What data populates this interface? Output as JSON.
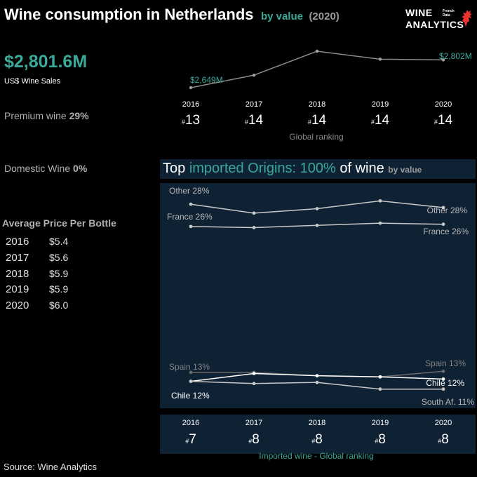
{
  "header": {
    "title": "Wine consumption in Netherlands",
    "by_value": "by value",
    "year": "(2020)"
  },
  "logo": {
    "line1": "WINE",
    "line2": "ANALYTICS",
    "tag1": "French",
    "tag2": "Data"
  },
  "sales": {
    "value": "$2,801.6M",
    "label": "US$ Wine Sales"
  },
  "premium": {
    "label": "Premium wine",
    "value": "29%"
  },
  "domestic": {
    "label": "Domestic Wine",
    "value": "0%"
  },
  "avg_price": {
    "title": "Average Price Per Bottle",
    "rows": [
      {
        "year": "2016",
        "price": "$5.4"
      },
      {
        "year": "2017",
        "price": "$5.6"
      },
      {
        "year": "2018",
        "price": "$5.9"
      },
      {
        "year": "2019",
        "price": "$5.9"
      },
      {
        "year": "2020",
        "price": "$6.0"
      }
    ]
  },
  "origins": {
    "title_pre": "Top",
    "title_teal": "imported Origins: 100%",
    "title_post": "of wine",
    "title_small": "by value"
  },
  "global_ranking_label": "Global ranking",
  "imported_ranking_label": "Imported wine - Global ranking",
  "source": "Source: Wine Analytics",
  "colors": {
    "teal": "#3aa99a",
    "panel": "#0f2233",
    "line": "#9a9a9a"
  },
  "chart_data": [
    {
      "type": "line",
      "x": [
        "2016",
        "2017",
        "2018",
        "2019",
        "2020"
      ],
      "series": [
        {
          "values": [
            2649,
            2718,
            2850,
            2806,
            2802
          ]
        }
      ],
      "labels": {
        "first": "$2,649M",
        "last": "$2,802M"
      },
      "ylim": [
        2600,
        2870
      ]
    },
    {
      "type": "table",
      "title": "Global ranking",
      "x": [
        "2016",
        "2017",
        "2018",
        "2019",
        "2020"
      ],
      "values": [
        13,
        14,
        14,
        14,
        14
      ]
    },
    {
      "type": "line",
      "x": [
        "2016",
        "2017",
        "2018",
        "2019",
        "2020"
      ],
      "ylim": [
        10.5,
        28.7
      ],
      "series": [
        {
          "name": "Other",
          "values": [
            28.0,
            27.2,
            27.6,
            28.3,
            27.7
          ],
          "first_label": "Other 28%",
          "last_label": "Other 28%",
          "color": "#c8c8c8"
        },
        {
          "name": "France",
          "values": [
            26.0,
            25.9,
            26.1,
            26.3,
            26.2
          ],
          "first_label": "France 26%",
          "last_label": "France 26%",
          "color": "#c8c8c8"
        },
        {
          "name": "Spain",
          "values": [
            12.9,
            12.9,
            12.6,
            12.5,
            13.0
          ],
          "first_label": "Spain 13%",
          "last_label": "Spain 13%",
          "color": "#6a6a6a"
        },
        {
          "name": "Chile",
          "values": [
            12.1,
            12.8,
            12.6,
            12.5,
            12.3
          ],
          "first_label": "Chile 12%",
          "last_label": "Chile 12%",
          "color": "#ffffff"
        },
        {
          "name": "South Af.",
          "values": [
            12.1,
            11.9,
            12.0,
            11.4,
            11.4
          ],
          "first_label": "",
          "last_label": "South Af. 11%",
          "color": "#c8c8c8"
        }
      ]
    },
    {
      "type": "table",
      "title": "Imported wine - Global ranking",
      "x": [
        "2016",
        "2017",
        "2018",
        "2019",
        "2020"
      ],
      "values": [
        7,
        8,
        8,
        8,
        8
      ]
    }
  ]
}
